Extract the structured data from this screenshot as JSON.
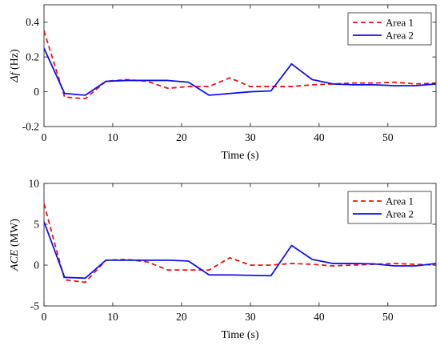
{
  "chart_data": [
    {
      "type": "line",
      "title": "",
      "xlabel": "Time (s)",
      "ylabel": "Δf (Hz)",
      "ylabel_italic_part": "Δf",
      "ylabel_unit": " (Hz)",
      "xlim": [
        0,
        57
      ],
      "ylim": [
        -0.2,
        0.5
      ],
      "xticks": [
        0,
        10,
        20,
        30,
        40,
        50
      ],
      "xtick_labels": [
        "0",
        "10",
        "20",
        "30",
        "40",
        "50"
      ],
      "yticks": [
        -0.2,
        0,
        0.2,
        0.4
      ],
      "ytick_labels": [
        "-0.2",
        "0",
        "0.2",
        "0.4"
      ],
      "grid": false,
      "legend_position": "top-right",
      "series": [
        {
          "name": "Area 1",
          "color": "#ee1111",
          "dash": "dashed",
          "x": [
            0,
            3,
            6,
            9,
            12,
            15,
            18,
            21,
            24,
            27,
            30,
            33,
            36,
            39,
            42,
            45,
            48,
            51,
            54,
            57
          ],
          "y": [
            0.35,
            -0.03,
            -0.04,
            0.06,
            0.07,
            0.06,
            0.02,
            0.03,
            0.03,
            0.08,
            0.03,
            0.03,
            0.03,
            0.04,
            0.045,
            0.05,
            0.05,
            0.055,
            0.045,
            0.05
          ]
        },
        {
          "name": "Area 2",
          "color": "#1111ee",
          "dash": "solid",
          "x": [
            0,
            3,
            6,
            9,
            12,
            15,
            18,
            21,
            24,
            27,
            30,
            33,
            36,
            39,
            42,
            45,
            48,
            51,
            54,
            57
          ],
          "y": [
            0.25,
            -0.01,
            -0.02,
            0.06,
            0.065,
            0.065,
            0.065,
            0.055,
            -0.02,
            -0.01,
            0.0,
            0.005,
            0.16,
            0.07,
            0.045,
            0.04,
            0.04,
            0.035,
            0.035,
            0.045
          ]
        }
      ]
    },
    {
      "type": "line",
      "title": "",
      "xlabel": "Time (s)",
      "ylabel": "ACE (MW)",
      "ylabel_italic_part": "ACE",
      "ylabel_unit": " (MW)",
      "xlim": [
        0,
        57
      ],
      "ylim": [
        -5,
        10
      ],
      "xticks": [
        0,
        10,
        20,
        30,
        40,
        50
      ],
      "xtick_labels": [
        "0",
        "10",
        "20",
        "30",
        "40",
        "50"
      ],
      "yticks": [
        -5,
        0,
        5,
        10
      ],
      "ytick_labels": [
        "-5",
        "0",
        "5",
        "10"
      ],
      "grid": false,
      "legend_position": "top-right",
      "series": [
        {
          "name": "Area 1",
          "color": "#ee1111",
          "dash": "dashed",
          "x": [
            0,
            3,
            6,
            9,
            12,
            15,
            18,
            21,
            24,
            27,
            30,
            33,
            36,
            39,
            42,
            45,
            48,
            51,
            54,
            57
          ],
          "y": [
            7.5,
            -1.8,
            -2.1,
            0.6,
            0.7,
            0.4,
            -0.6,
            -0.6,
            -0.6,
            0.9,
            0.0,
            0.0,
            0.2,
            0.1,
            -0.1,
            0.0,
            0.1,
            0.2,
            0.1,
            0.0
          ]
        },
        {
          "name": "Area 2",
          "color": "#1111ee",
          "dash": "solid",
          "x": [
            0,
            3,
            6,
            9,
            12,
            15,
            18,
            21,
            24,
            27,
            30,
            33,
            36,
            39,
            42,
            45,
            48,
            51,
            54,
            57
          ],
          "y": [
            5.3,
            -1.5,
            -1.6,
            0.6,
            0.6,
            0.6,
            0.6,
            0.5,
            -1.2,
            -1.2,
            -1.25,
            -1.3,
            2.4,
            0.7,
            0.2,
            0.2,
            0.15,
            -0.1,
            -0.1,
            0.2
          ]
        }
      ]
    }
  ]
}
